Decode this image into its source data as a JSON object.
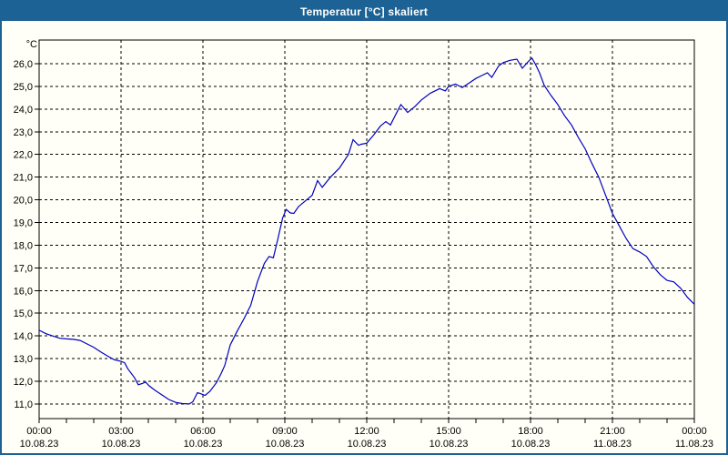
{
  "window": {
    "title": "Temperatur [°C] skaliert"
  },
  "chart_data": {
    "type": "line",
    "title": "Temperatur [°C] skaliert",
    "unit_label": "°C",
    "line_color": "#0000c0",
    "grid": "dashed",
    "xlim_hours": [
      0,
      24
    ],
    "ylim": [
      10.4,
      27.0
    ],
    "y_ticks": [
      26,
      25,
      24,
      23,
      22,
      21,
      20,
      19,
      18,
      17,
      16,
      15,
      14,
      13,
      12,
      11
    ],
    "y_tick_labels": [
      "26,0",
      "25,0",
      "24,0",
      "23,0",
      "22,0",
      "21,0",
      "20,0",
      "19,0",
      "18,0",
      "17,0",
      "16,0",
      "15,0",
      "14,0",
      "13,0",
      "12,0",
      "11,0"
    ],
    "x_minor_tick_every_hours": 1,
    "x_major_tick_every_hours": 3,
    "x_ticks": [
      {
        "hour": 0,
        "time": "00:00",
        "date": "10.08.23"
      },
      {
        "hour": 3,
        "time": "03:00",
        "date": "10.08.23"
      },
      {
        "hour": 6,
        "time": "06:00",
        "date": "10.08.23"
      },
      {
        "hour": 9,
        "time": "09:00",
        "date": "10.08.23"
      },
      {
        "hour": 12,
        "time": "12:00",
        "date": "10.08.23"
      },
      {
        "hour": 15,
        "time": "15:00",
        "date": "10.08.23"
      },
      {
        "hour": 18,
        "time": "18:00",
        "date": "10.08.23"
      },
      {
        "hour": 21,
        "time": "21:00",
        "date": "11.08.23"
      },
      {
        "hour": 24,
        "time": "00:00",
        "date": "11.08.23"
      }
    ],
    "series": [
      {
        "name": "Temperatur",
        "points": [
          [
            0.0,
            14.25
          ],
          [
            0.25,
            14.1
          ],
          [
            0.5,
            14.0
          ],
          [
            0.75,
            13.9
          ],
          [
            1.0,
            13.87
          ],
          [
            1.25,
            13.85
          ],
          [
            1.5,
            13.8
          ],
          [
            1.75,
            13.65
          ],
          [
            2.0,
            13.5
          ],
          [
            2.25,
            13.3
          ],
          [
            2.5,
            13.12
          ],
          [
            2.75,
            12.95
          ],
          [
            3.0,
            12.88
          ],
          [
            3.13,
            12.82
          ],
          [
            3.25,
            12.55
          ],
          [
            3.5,
            12.15
          ],
          [
            3.63,
            11.85
          ],
          [
            3.77,
            11.9
          ],
          [
            3.9,
            11.97
          ],
          [
            4.03,
            11.8
          ],
          [
            4.25,
            11.6
          ],
          [
            4.5,
            11.4
          ],
          [
            4.75,
            11.2
          ],
          [
            5.0,
            11.07
          ],
          [
            5.25,
            11.02
          ],
          [
            5.5,
            11.0
          ],
          [
            5.63,
            11.1
          ],
          [
            5.8,
            11.5
          ],
          [
            5.92,
            11.45
          ],
          [
            6.08,
            11.38
          ],
          [
            6.25,
            11.55
          ],
          [
            6.5,
            11.95
          ],
          [
            6.67,
            12.35
          ],
          [
            6.8,
            12.7
          ],
          [
            7.0,
            13.6
          ],
          [
            7.25,
            14.2
          ],
          [
            7.5,
            14.75
          ],
          [
            7.75,
            15.35
          ],
          [
            8.0,
            16.4
          ],
          [
            8.25,
            17.2
          ],
          [
            8.42,
            17.5
          ],
          [
            8.58,
            17.45
          ],
          [
            8.75,
            18.3
          ],
          [
            8.92,
            19.2
          ],
          [
            9.05,
            19.58
          ],
          [
            9.2,
            19.42
          ],
          [
            9.33,
            19.4
          ],
          [
            9.5,
            19.7
          ],
          [
            9.75,
            19.95
          ],
          [
            10.0,
            20.2
          ],
          [
            10.2,
            20.85
          ],
          [
            10.37,
            20.55
          ],
          [
            10.67,
            21.0
          ],
          [
            11.0,
            21.4
          ],
          [
            11.33,
            22.0
          ],
          [
            11.5,
            22.65
          ],
          [
            11.7,
            22.4
          ],
          [
            11.8,
            22.45
          ],
          [
            12.0,
            22.5
          ],
          [
            12.25,
            22.85
          ],
          [
            12.5,
            23.25
          ],
          [
            12.7,
            23.45
          ],
          [
            12.87,
            23.3
          ],
          [
            13.08,
            23.8
          ],
          [
            13.25,
            24.2
          ],
          [
            13.5,
            23.85
          ],
          [
            13.75,
            24.1
          ],
          [
            14.0,
            24.4
          ],
          [
            14.33,
            24.7
          ],
          [
            14.67,
            24.9
          ],
          [
            14.88,
            24.8
          ],
          [
            15.0,
            25.0
          ],
          [
            15.25,
            25.1
          ],
          [
            15.5,
            24.95
          ],
          [
            15.75,
            25.15
          ],
          [
            16.0,
            25.35
          ],
          [
            16.25,
            25.5
          ],
          [
            16.42,
            25.6
          ],
          [
            16.58,
            25.4
          ],
          [
            16.83,
            25.9
          ],
          [
            17.0,
            26.05
          ],
          [
            17.25,
            26.15
          ],
          [
            17.5,
            26.2
          ],
          [
            17.7,
            25.8
          ],
          [
            17.92,
            26.1
          ],
          [
            18.05,
            26.25
          ],
          [
            18.17,
            26.0
          ],
          [
            18.33,
            25.6
          ],
          [
            18.5,
            25.05
          ],
          [
            18.75,
            24.6
          ],
          [
            19.0,
            24.2
          ],
          [
            19.25,
            23.7
          ],
          [
            19.5,
            23.3
          ],
          [
            19.75,
            22.75
          ],
          [
            20.0,
            22.25
          ],
          [
            20.25,
            21.6
          ],
          [
            20.5,
            21.0
          ],
          [
            20.75,
            20.2
          ],
          [
            21.0,
            19.4
          ],
          [
            21.25,
            18.85
          ],
          [
            21.5,
            18.3
          ],
          [
            21.75,
            17.85
          ],
          [
            22.0,
            17.7
          ],
          [
            22.25,
            17.5
          ],
          [
            22.5,
            17.05
          ],
          [
            22.75,
            16.7
          ],
          [
            23.0,
            16.45
          ],
          [
            23.25,
            16.38
          ],
          [
            23.5,
            16.1
          ],
          [
            23.75,
            15.7
          ],
          [
            24.0,
            15.4
          ]
        ]
      }
    ]
  }
}
